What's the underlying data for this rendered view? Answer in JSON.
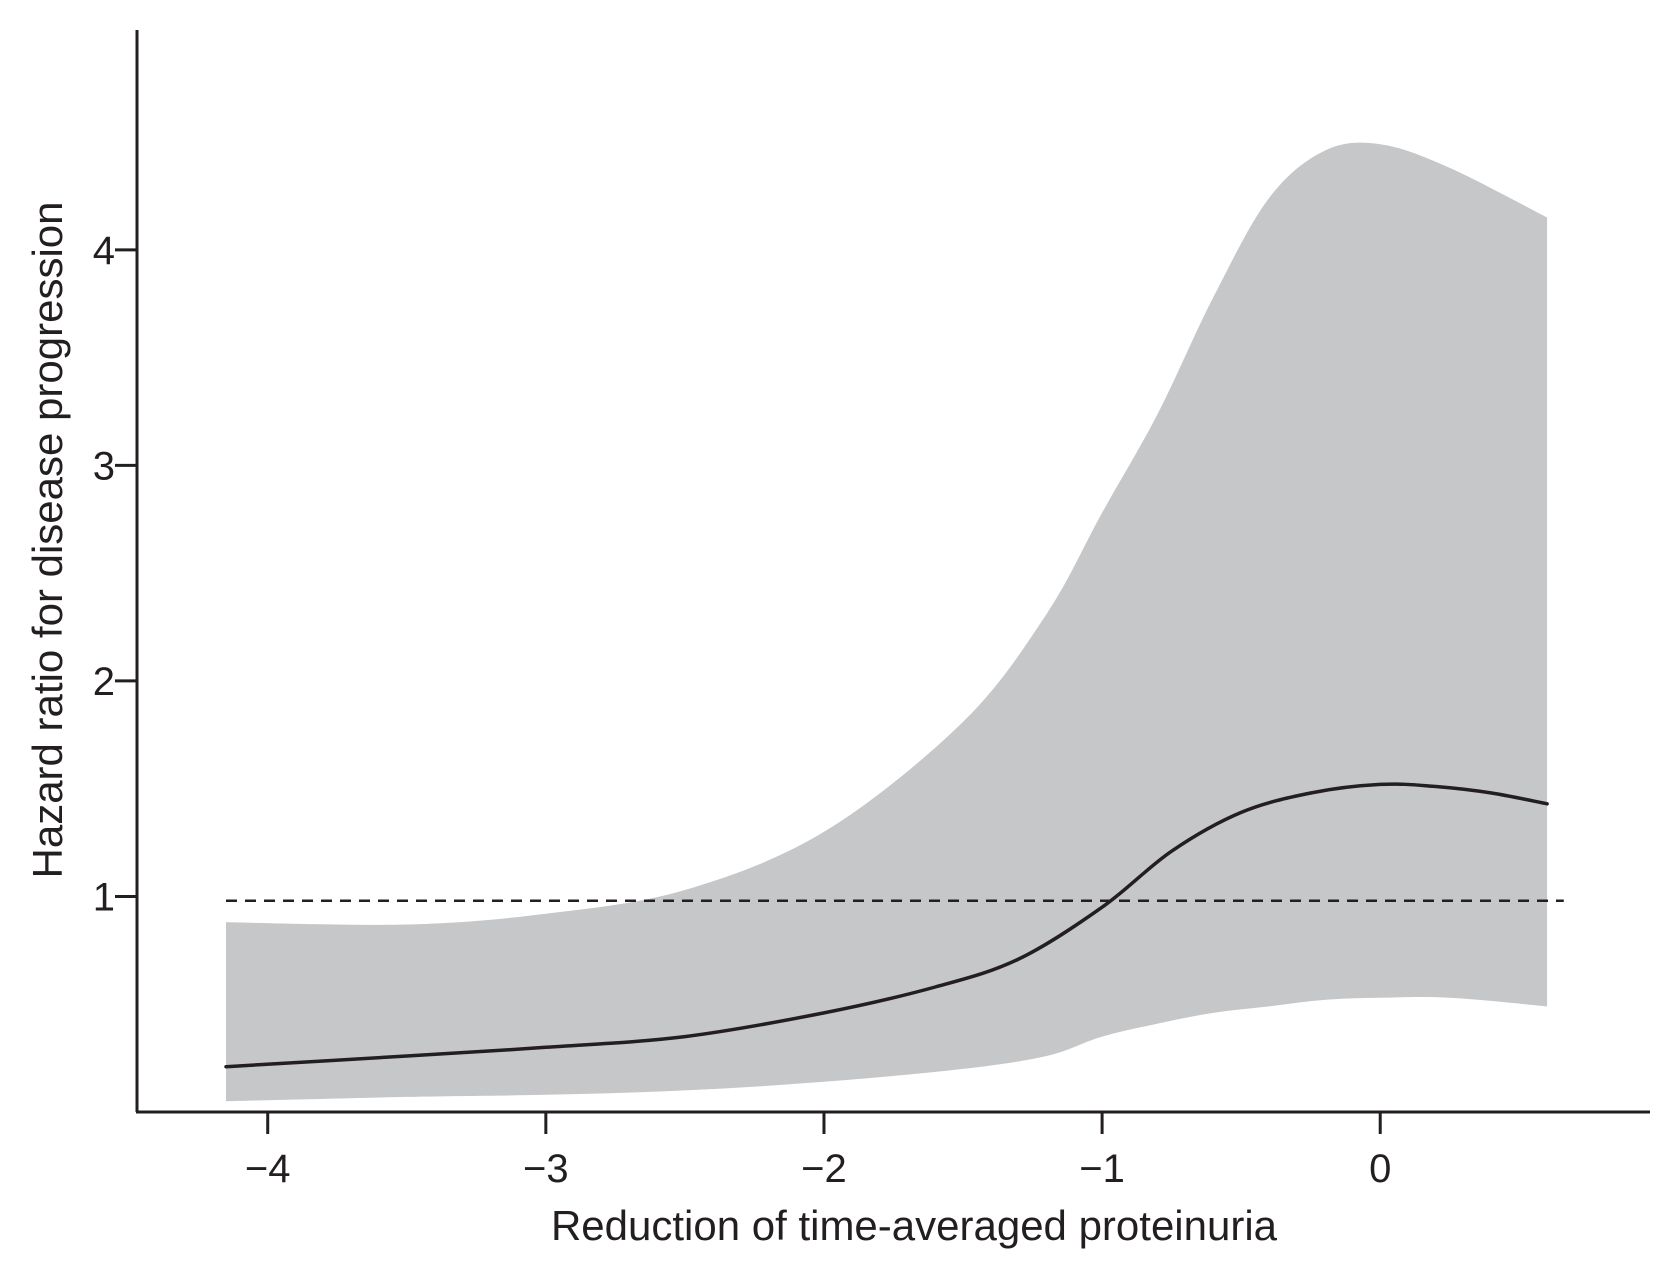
{
  "chart_data": {
    "type": "line",
    "title": "",
    "xlabel": "Reduction of time-averaged proteinuria",
    "ylabel": "Hazard ratio for disease progression",
    "xlim": [
      -4.47,
      0.97
    ],
    "ylim": [
      0,
      5.02
    ],
    "x_ticks": [
      -4,
      -3,
      -2,
      -1,
      0
    ],
    "x_tick_labels": [
      "−4",
      "−3",
      "−2",
      "−1",
      "0"
    ],
    "y_ticks": [
      1,
      2,
      3,
      4
    ],
    "y_tick_labels": [
      "1",
      "2",
      "3",
      "4"
    ],
    "grid": false,
    "legend": "none",
    "colors": {
      "band": "#c6c7c9",
      "line": "#231f20",
      "axis": "#231f20"
    },
    "reference_line": {
      "y": 0.98,
      "style": "dashed"
    },
    "series": [
      {
        "kind": "line",
        "x": [
          -4.15,
          -3.5,
          -3.0,
          -2.5,
          -2.0,
          -1.6,
          -1.3,
          -1.0,
          -0.75,
          -0.5,
          -0.25,
          0.0,
          0.2,
          0.4,
          0.6
        ],
        "y": [
          0.21,
          0.26,
          0.3,
          0.35,
          0.46,
          0.58,
          0.71,
          0.95,
          1.21,
          1.39,
          1.48,
          1.52,
          1.51,
          1.48,
          1.43
        ]
      },
      {
        "kind": "band",
        "x": [
          -4.15,
          -3.5,
          -3.0,
          -2.5,
          -2.0,
          -1.5,
          -1.2,
          -1.0,
          -0.8,
          -0.6,
          -0.4,
          -0.2,
          0.0,
          0.25,
          0.6
        ],
        "upper": [
          0.88,
          0.87,
          0.92,
          1.03,
          1.3,
          1.81,
          2.31,
          2.78,
          3.24,
          3.78,
          4.24,
          4.46,
          4.49,
          4.38,
          4.15
        ],
        "lower": [
          0.05,
          0.07,
          0.08,
          0.1,
          0.14,
          0.2,
          0.26,
          0.35,
          0.41,
          0.46,
          0.49,
          0.52,
          0.53,
          0.53,
          0.49
        ]
      }
    ]
  }
}
